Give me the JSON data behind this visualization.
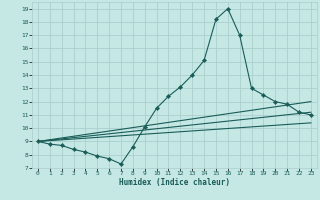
{
  "xlabel": "Humidex (Indice chaleur)",
  "background_color": "#c5e8e5",
  "grid_color": "#aacfcc",
  "line_color": "#1a5c58",
  "xlim": [
    -0.5,
    23.5
  ],
  "ylim": [
    7,
    19.5
  ],
  "xticks": [
    0,
    1,
    2,
    3,
    4,
    5,
    6,
    7,
    8,
    9,
    10,
    11,
    12,
    13,
    14,
    15,
    16,
    17,
    18,
    19,
    20,
    21,
    22,
    23
  ],
  "yticks": [
    7,
    8,
    9,
    10,
    11,
    12,
    13,
    14,
    15,
    16,
    17,
    18,
    19
  ],
  "series_main": {
    "x": [
      0,
      1,
      2,
      3,
      4,
      5,
      6,
      7,
      8,
      9,
      10,
      11,
      12,
      13,
      14,
      15,
      16,
      17,
      18,
      19,
      20,
      21,
      22,
      23
    ],
    "y": [
      9.0,
      8.8,
      8.7,
      8.4,
      8.2,
      7.9,
      7.7,
      7.3,
      8.6,
      10.1,
      11.5,
      12.4,
      13.1,
      14.0,
      15.1,
      18.2,
      19.0,
      17.0,
      13.0,
      12.5,
      12.0,
      11.8,
      11.2,
      11.0
    ]
  },
  "series_lines": [
    {
      "x": [
        0,
        23
      ],
      "y": [
        9.0,
        12.0
      ]
    },
    {
      "x": [
        0,
        23
      ],
      "y": [
        9.0,
        11.2
      ]
    },
    {
      "x": [
        0,
        23
      ],
      "y": [
        9.0,
        10.4
      ]
    }
  ]
}
